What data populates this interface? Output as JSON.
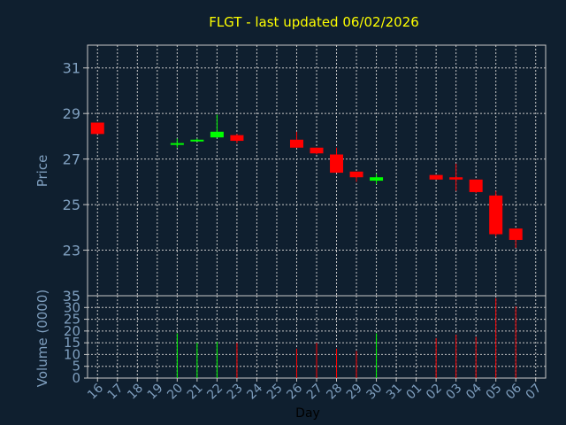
{
  "chart_data": {
    "type": "candlestick",
    "title": "FLGT - last updated 06/02/2026",
    "xlabel": "Day",
    "price_ylabel": "Price",
    "volume_ylabel": "Volume (0000)",
    "x_ticks": [
      "16",
      "17",
      "18",
      "19",
      "20",
      "21",
      "22",
      "23",
      "24",
      "25",
      "26",
      "27",
      "28",
      "29",
      "30",
      "31",
      "01",
      "02",
      "03",
      "04",
      "05",
      "06",
      "07"
    ],
    "price_ylim": [
      21.0,
      32.0
    ],
    "price_yticks": [
      23,
      25,
      27,
      29,
      31
    ],
    "volume_ylim": [
      0,
      35
    ],
    "volume_yticks": [
      0,
      5,
      10,
      15,
      20,
      25,
      30
    ],
    "volume_top_label": "35",
    "up_color": "#00ff00",
    "down_color": "#ff0000",
    "grid": true,
    "candles": [
      {
        "day": "16",
        "open": 28.6,
        "high": 28.6,
        "low": 28.1,
        "close": 28.1,
        "volume": 0
      },
      {
        "day": "20",
        "open": 27.7,
        "high": 27.9,
        "low": 27.5,
        "close": 27.7,
        "volume": 19
      },
      {
        "day": "21",
        "open": 27.8,
        "high": 27.9,
        "low": 27.8,
        "close": 27.85,
        "volume": 15
      },
      {
        "day": "22",
        "open": 27.95,
        "high": 28.95,
        "low": 27.95,
        "close": 28.2,
        "volume": 15.5
      },
      {
        "day": "23",
        "open": 28.05,
        "high": 28.1,
        "low": 27.7,
        "close": 27.8,
        "volume": 15
      },
      {
        "day": "26",
        "open": 27.85,
        "high": 28.2,
        "low": 27.5,
        "close": 27.5,
        "volume": 12.5
      },
      {
        "day": "27",
        "open": 27.5,
        "high": 27.5,
        "low": 27.2,
        "close": 27.25,
        "volume": 15
      },
      {
        "day": "28",
        "open": 27.2,
        "high": 27.5,
        "low": 26.4,
        "close": 26.4,
        "volume": 12.5
      },
      {
        "day": "29",
        "open": 26.45,
        "high": 26.45,
        "low": 26.0,
        "close": 26.2,
        "volume": 11.5
      },
      {
        "day": "30",
        "open": 26.05,
        "high": 26.35,
        "low": 25.9,
        "close": 26.2,
        "volume": 19
      },
      {
        "day": "02",
        "open": 26.3,
        "high": 26.3,
        "low": 26.1,
        "close": 26.1,
        "volume": 17
      },
      {
        "day": "03",
        "open": 26.2,
        "high": 26.8,
        "low": 25.6,
        "close": 26.1,
        "volume": 18.5
      },
      {
        "day": "04",
        "open": 26.1,
        "high": 26.1,
        "low": 25.5,
        "close": 25.55,
        "volume": 17.5
      },
      {
        "day": "05",
        "open": 25.4,
        "high": 25.6,
        "low": 23.6,
        "close": 23.7,
        "volume": 34
      },
      {
        "day": "06",
        "open": 23.95,
        "high": 23.95,
        "low": 23.1,
        "close": 23.45,
        "volume": 30.5
      }
    ]
  }
}
